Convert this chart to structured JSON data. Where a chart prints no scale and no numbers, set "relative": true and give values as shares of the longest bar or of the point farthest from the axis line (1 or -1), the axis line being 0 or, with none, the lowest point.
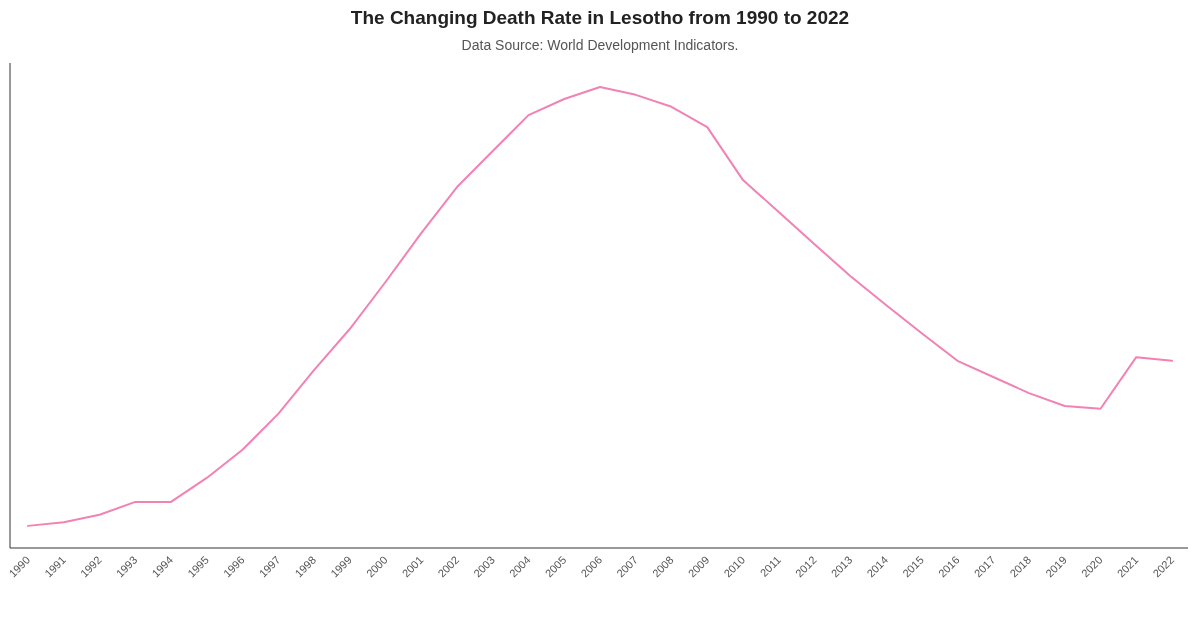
{
  "chart_data": {
    "type": "line",
    "title": "The Changing Death Rate in Lesotho from 1990 to 2022",
    "subtitle": "Data Source: World Development Indicators.",
    "relative": true,
    "categories": [
      "1990",
      "1991",
      "1992",
      "1993",
      "1994",
      "1995",
      "1996",
      "1997",
      "1998",
      "1999",
      "2000",
      "2001",
      "2002",
      "2003",
      "2004",
      "2005",
      "2006",
      "2007",
      "2008",
      "2009",
      "2010",
      "2011",
      "2012",
      "2013",
      "2014",
      "2015",
      "2016",
      "2017",
      "2018",
      "2019",
      "2020",
      "2021",
      "2022"
    ],
    "series": [
      {
        "color": "#f282b4",
        "values": [
          0.048,
          0.056,
          0.072,
          0.1,
          0.1,
          0.152,
          0.213,
          0.291,
          0.386,
          0.475,
          0.577,
          0.683,
          0.783,
          0.861,
          0.939,
          0.974,
          1,
          0.983,
          0.957,
          0.913,
          0.798,
          0.729,
          0.659,
          0.59,
          0.527,
          0.466,
          0.406,
          0.371,
          0.336,
          0.308,
          0.302,
          0.414,
          0.406
        ]
      }
    ],
    "marker": "none",
    "line_style": "solid"
  }
}
